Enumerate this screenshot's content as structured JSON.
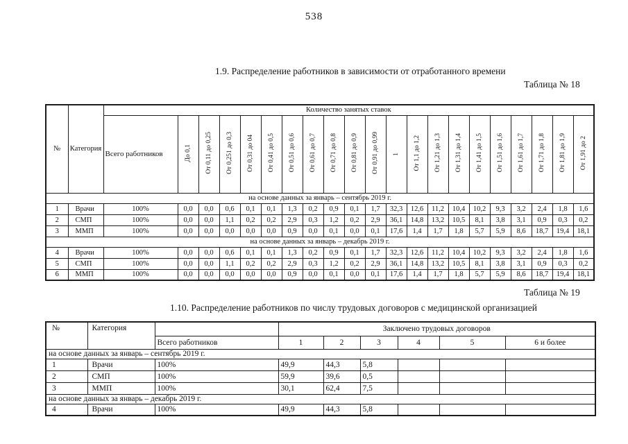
{
  "page_number": "538",
  "section_1_9": {
    "title": "1.9. Распределение работников в зависимости от отработанного времени",
    "table_label": "Таблица № 18"
  },
  "table18": {
    "header": {
      "num": "№",
      "category": "Категория",
      "total": "Всего работников",
      "group": "Количество занятых ставок",
      "rate_columns": [
        "До 0,1",
        "От 0,11 до 0,25",
        "От 0,251 до 0,3",
        "От 0,31 до 04",
        "От 0,41 до 0,5",
        "От 0,51 до 0,6",
        "От 0,61 до 0,7",
        "От 0,71 до 0,8",
        "От 0,81 до 0,9",
        "От 0,91 до 0,99",
        "1",
        "От 1,1 до 1,2",
        "От 1,21 до 1,3",
        "От 1,31 до 1,4",
        "От 1,41 до 1,5",
        "От 1,51 до 1,6",
        "От 1,61 до 1,7",
        "От 1,71 до 1,8",
        "От 1,81 до 1,9",
        "От 1,91 до 2"
      ]
    },
    "sections": [
      {
        "band": "на основе данных за январь – сентябрь 2019 г.",
        "rows": [
          {
            "num": "1",
            "category": "Врачи",
            "total": "100%",
            "values": [
              "0,0",
              "0,0",
              "0,6",
              "0,1",
              "0,1",
              "1,3",
              "0,2",
              "0,9",
              "0,1",
              "1,7",
              "32,3",
              "12,6",
              "11,2",
              "10,4",
              "10,2",
              "9,3",
              "3,2",
              "2,4",
              "1,8",
              "1,6"
            ]
          },
          {
            "num": "2",
            "category": "СМП",
            "total": "100%",
            "values": [
              "0,0",
              "0,0",
              "1,1",
              "0,2",
              "0,2",
              "2,9",
              "0,3",
              "1,2",
              "0,2",
              "2,9",
              "36,1",
              "14,8",
              "13,2",
              "10,5",
              "8,1",
              "3,8",
              "3,1",
              "0,9",
              "0,3",
              "0,2"
            ]
          },
          {
            "num": "3",
            "category": "ММП",
            "total": "100%",
            "values": [
              "0,0",
              "0,0",
              "0,0",
              "0,0",
              "0,0",
              "0,9",
              "0,0",
              "0,1",
              "0,0",
              "0,1",
              "17,6",
              "1,4",
              "1,7",
              "1,8",
              "5,7",
              "5,9",
              "8,6",
              "18,7",
              "19,4",
              "18,1"
            ]
          }
        ]
      },
      {
        "band": "на основе данных за январь – декабрь 2019 г.",
        "rows": [
          {
            "num": "4",
            "category": "Врачи",
            "total": "100%",
            "values": [
              "0,0",
              "0,0",
              "0,6",
              "0,1",
              "0,1",
              "1,3",
              "0,2",
              "0,9",
              "0,1",
              "1,7",
              "32,3",
              "12,6",
              "11,2",
              "10,4",
              "10,2",
              "9,3",
              "3,2",
              "2,4",
              "1,8",
              "1,6"
            ]
          },
          {
            "num": "5",
            "category": "СМП",
            "total": "100%",
            "values": [
              "0,0",
              "0,0",
              "1,1",
              "0,2",
              "0,2",
              "2,9",
              "0,3",
              "1,2",
              "0,2",
              "2,9",
              "36,1",
              "14,8",
              "13,2",
              "10,5",
              "8,1",
              "3,8",
              "3,1",
              "0,9",
              "0,3",
              "0,2"
            ]
          },
          {
            "num": "6",
            "category": "ММП",
            "total": "100%",
            "values": [
              "0,0",
              "0,0",
              "0,0",
              "0,0",
              "0,0",
              "0,9",
              "0,0",
              "0,1",
              "0,0",
              "0,1",
              "17,6",
              "1,4",
              "1,7",
              "1,8",
              "5,7",
              "5,9",
              "8,6",
              "18,7",
              "19,4",
              "18,1"
            ]
          }
        ]
      }
    ]
  },
  "section_1_10": {
    "table_label": "Таблица № 19",
    "title": "1.10. Распределение работников по числу трудовых договоров с медицинской организацией"
  },
  "table19": {
    "header": {
      "num": "№",
      "category": "Категория",
      "total": "Всего работников",
      "group": "Заключено трудовых договоров",
      "count_columns": [
        "1",
        "2",
        "3",
        "4",
        "5",
        "6 и более"
      ]
    },
    "sections": [
      {
        "band": "на основе данных за январь – сентябрь 2019 г.",
        "rows": [
          {
            "num": "1",
            "category": "Врачи",
            "total": "100%",
            "values": [
              "49,9",
              "44,3",
              "5,8",
              "",
              "",
              ""
            ]
          },
          {
            "num": "2",
            "category": "СМП",
            "total": "100%",
            "values": [
              "59,9",
              "39,6",
              "0,5",
              "",
              "",
              ""
            ]
          },
          {
            "num": "3",
            "category": "ММП",
            "total": "100%",
            "values": [
              "30,1",
              "62,4",
              "7,5",
              "",
              "",
              ""
            ]
          }
        ]
      },
      {
        "band": "на основе данных за январь – декабрь 2019 г.",
        "rows": [
          {
            "num": "4",
            "category": "Врачи",
            "total": "100%",
            "values": [
              "49,9",
              "44,3",
              "5,8",
              "",
              "",
              ""
            ]
          }
        ]
      }
    ]
  }
}
